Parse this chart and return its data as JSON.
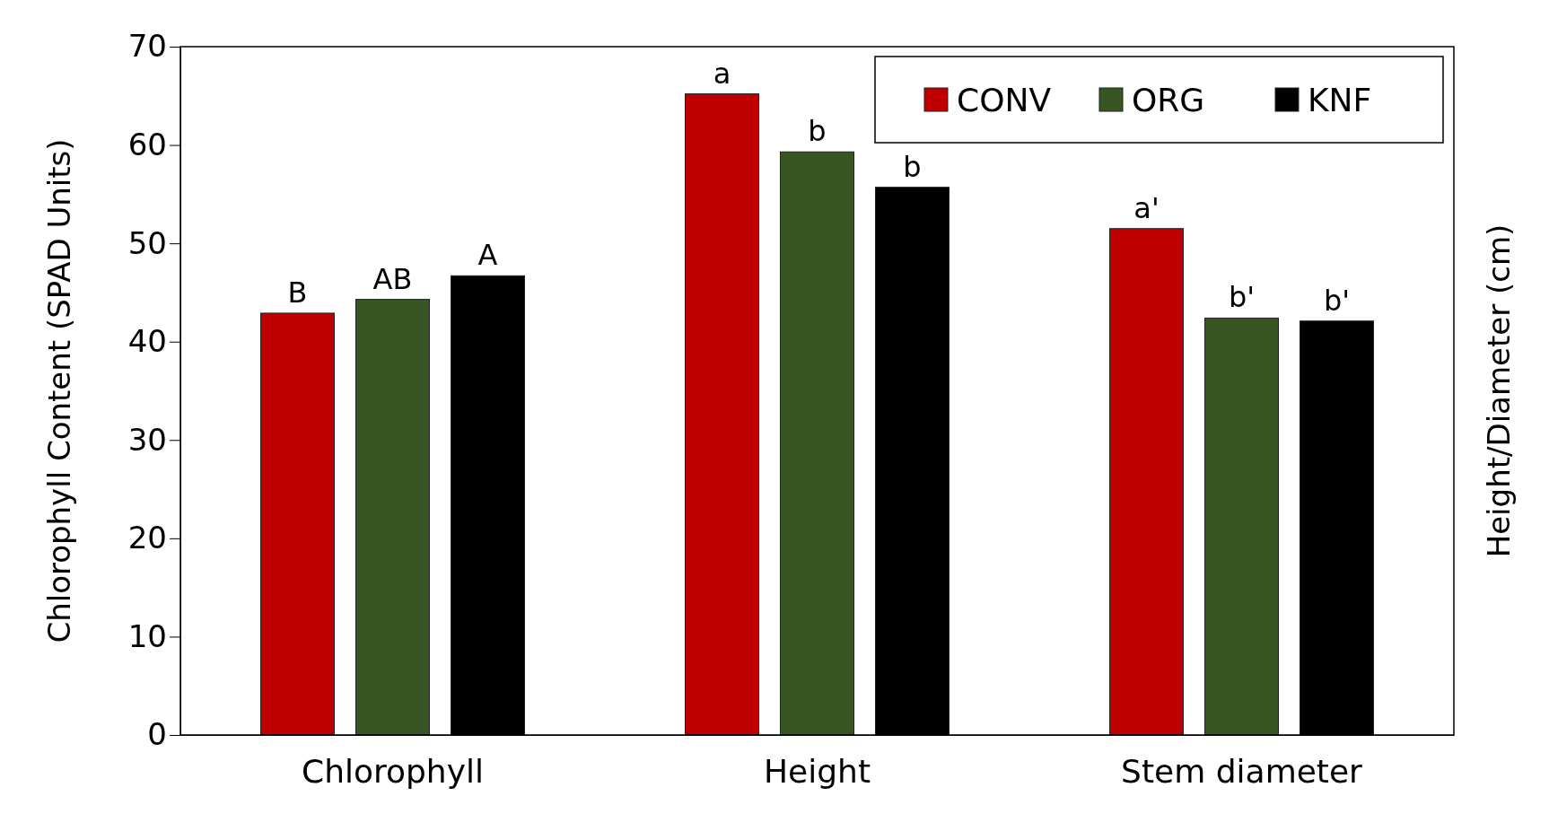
{
  "chart_data": {
    "type": "bar",
    "ylabel": "Chlorophyll Content (SPAD Units)",
    "y2label": "Height/Diameter (cm)",
    "categories": [
      "Chlorophyll",
      "Height",
      "Stem diameter"
    ],
    "series": [
      {
        "name": "CONV",
        "color": "#c00000",
        "values": [
          42.9,
          65.2,
          51.5
        ],
        "value_labels": [
          "B",
          "a",
          "a'"
        ]
      },
      {
        "name": "ORG",
        "color": "#375623",
        "values": [
          44.3,
          59.3,
          42.4
        ],
        "value_labels": [
          "AB",
          "b",
          "b'"
        ]
      },
      {
        "name": "KNF",
        "color": "#000000",
        "values": [
          46.7,
          55.7,
          42.1
        ],
        "value_labels": [
          "A",
          "b",
          "b'"
        ]
      }
    ],
    "ylim": [
      0,
      70
    ],
    "yticks": [
      0,
      10,
      20,
      30,
      40,
      50,
      60,
      70
    ],
    "grid": false,
    "legend": "top right"
  }
}
